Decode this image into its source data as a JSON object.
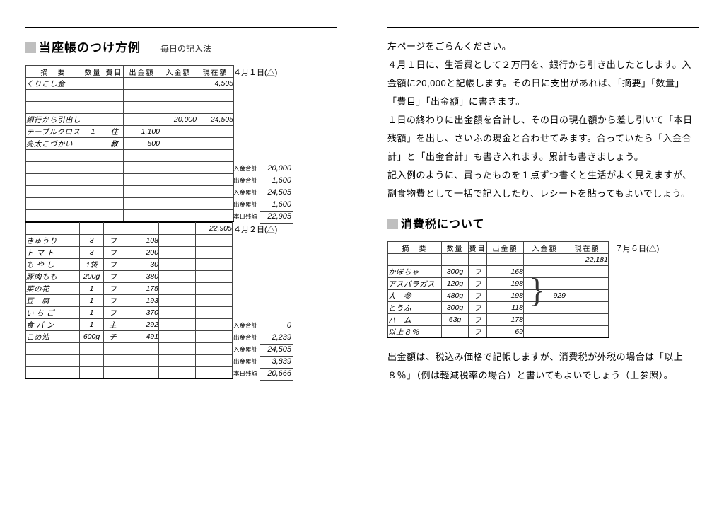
{
  "left": {
    "title": "当座帳のつけ方例",
    "subtitle": "毎日の記入法",
    "date1": "４月１日(△)",
    "date2": "４月２日(△)",
    "headers": {
      "tekiyo": "摘　要",
      "qty": "数量",
      "hiyo": "費目",
      "out": "出金額",
      "in": "入金額",
      "bal": "現在額"
    },
    "rows1": [
      {
        "tekiyo": "くりこし金",
        "qty": "",
        "hiyo": "",
        "out": "",
        "in": "",
        "bal": "4,505"
      },
      {
        "tekiyo": "",
        "qty": "",
        "hiyo": "",
        "out": "",
        "in": "",
        "bal": ""
      },
      {
        "tekiyo": "",
        "qty": "",
        "hiyo": "",
        "out": "",
        "in": "",
        "bal": ""
      },
      {
        "tekiyo": "銀行から引出し",
        "qty": "",
        "hiyo": "",
        "out": "",
        "in": "20,000",
        "bal": "24,505"
      },
      {
        "tekiyo": "テーブルクロス",
        "qty": "1",
        "hiyo": "住",
        "out": "1,100",
        "in": "",
        "bal": ""
      },
      {
        "tekiyo": "亮太こづかい",
        "qty": "",
        "hiyo": "教",
        "out": "500",
        "in": "",
        "bal": ""
      },
      {
        "tekiyo": "",
        "qty": "",
        "hiyo": "",
        "out": "",
        "in": "",
        "bal": ""
      },
      {
        "tekiyo": "",
        "qty": "",
        "hiyo": "",
        "out": "",
        "in": "",
        "bal": ""
      },
      {
        "tekiyo": "",
        "qty": "",
        "hiyo": "",
        "out": "",
        "in": "",
        "bal": ""
      },
      {
        "tekiyo": "",
        "qty": "",
        "hiyo": "",
        "out": "",
        "in": "",
        "bal": ""
      },
      {
        "tekiyo": "",
        "qty": "",
        "hiyo": "",
        "out": "",
        "in": "",
        "bal": ""
      },
      {
        "tekiyo": "",
        "qty": "",
        "hiyo": "",
        "out": "",
        "in": "",
        "bal": ""
      }
    ],
    "totals1": [
      {
        "lbl": "入金合計",
        "val": "20,000"
      },
      {
        "lbl": "出金合計",
        "val": "1,600"
      },
      {
        "lbl": "入金累計",
        "val": "24,505"
      },
      {
        "lbl": "出金累計",
        "val": "1,600"
      },
      {
        "lbl": "本日残額",
        "val": "22,905"
      }
    ],
    "rows2_first_bal": "22,905",
    "rows2": [
      {
        "tekiyo": "きゅうり",
        "qty": "3",
        "hiyo": "フ",
        "out": "108",
        "in": "",
        "bal": ""
      },
      {
        "tekiyo": "ト マ ト",
        "qty": "3",
        "hiyo": "フ",
        "out": "200",
        "in": "",
        "bal": ""
      },
      {
        "tekiyo": "も や し",
        "qty": "1袋",
        "hiyo": "フ",
        "out": "30",
        "in": "",
        "bal": ""
      },
      {
        "tekiyo": "豚肉もも",
        "qty": "200g",
        "hiyo": "フ",
        "out": "380",
        "in": "",
        "bal": ""
      },
      {
        "tekiyo": "菜の花",
        "qty": "1",
        "hiyo": "フ",
        "out": "175",
        "in": "",
        "bal": ""
      },
      {
        "tekiyo": "豆　腐",
        "qty": "1",
        "hiyo": "フ",
        "out": "193",
        "in": "",
        "bal": ""
      },
      {
        "tekiyo": "い ち ご",
        "qty": "1",
        "hiyo": "フ",
        "out": "370",
        "in": "",
        "bal": ""
      },
      {
        "tekiyo": "食 パ ン",
        "qty": "1",
        "hiyo": "主",
        "out": "292",
        "in": "",
        "bal": ""
      },
      {
        "tekiyo": "こめ油",
        "qty": "600g",
        "hiyo": "チ",
        "out": "491",
        "in": "",
        "bal": ""
      },
      {
        "tekiyo": "",
        "qty": "",
        "hiyo": "",
        "out": "",
        "in": "",
        "bal": ""
      },
      {
        "tekiyo": "",
        "qty": "",
        "hiyo": "",
        "out": "",
        "in": "",
        "bal": ""
      },
      {
        "tekiyo": "",
        "qty": "",
        "hiyo": "",
        "out": "",
        "in": "",
        "bal": ""
      }
    ],
    "totals2": [
      {
        "lbl": "入金合計",
        "val": "0"
      },
      {
        "lbl": "出金合計",
        "val": "2,239"
      },
      {
        "lbl": "入金累計",
        "val": "24,505"
      },
      {
        "lbl": "出金累計",
        "val": "3,839"
      },
      {
        "lbl": "本日残額",
        "val": "20,666"
      }
    ]
  },
  "right": {
    "paras": [
      "左ページをごらんください。",
      "４月１日に、生活費として２万円を、銀行から引き出したとします。入金額に20,000と記帳します。その日に支出があれば、「摘要」「数量」「費目」「出金額」に書きます。",
      "１日の終わりに出金額を合計し、その日の現在額から差し引いて「本日残額」を出し、さいふの現金と合わせてみます。合っていたら「入金合計」と「出金合計」も書き入れます。累計も書きましょう。",
      "記入例のように、買ったものを１点ずつ書くと生活がよく見えますが、副食物費として一括で記入したり、レシートを貼ってもよいでしょう。"
    ],
    "h2": "消費税について",
    "date": "７月６日(△)",
    "headers": {
      "tekiyo": "摘　要",
      "qty": "数量",
      "hiyo": "費目",
      "out": "出金額",
      "in": "入金額",
      "bal": "現在額"
    },
    "first_bal": "22,181",
    "rows": [
      {
        "tekiyo": "かぼちゃ",
        "qty": "300g",
        "hiyo": "フ",
        "out": "168",
        "in": "",
        "bal": ""
      },
      {
        "tekiyo": "アスパラガス",
        "qty": "120g",
        "hiyo": "フ",
        "out": "198",
        "in": "",
        "bal": ""
      },
      {
        "tekiyo": "人　参",
        "qty": "480g",
        "hiyo": "フ",
        "out": "198",
        "in": "929",
        "bal": ""
      },
      {
        "tekiyo": "とうふ",
        "qty": "300g",
        "hiyo": "フ",
        "out": "118",
        "in": "",
        "bal": ""
      },
      {
        "tekiyo": "ハ　ム",
        "qty": "63g",
        "hiyo": "フ",
        "out": "178",
        "in": "",
        "bal": ""
      },
      {
        "tekiyo": "以上８％",
        "qty": "",
        "hiyo": "フ",
        "out": "69",
        "in": "",
        "bal": ""
      }
    ],
    "foot": "出金額は、税込み価格で記帳しますが、消費税が外税の場合は「以上８％」（例は軽減税率の場合）と書いてもよいでしょう（上参照）。"
  }
}
